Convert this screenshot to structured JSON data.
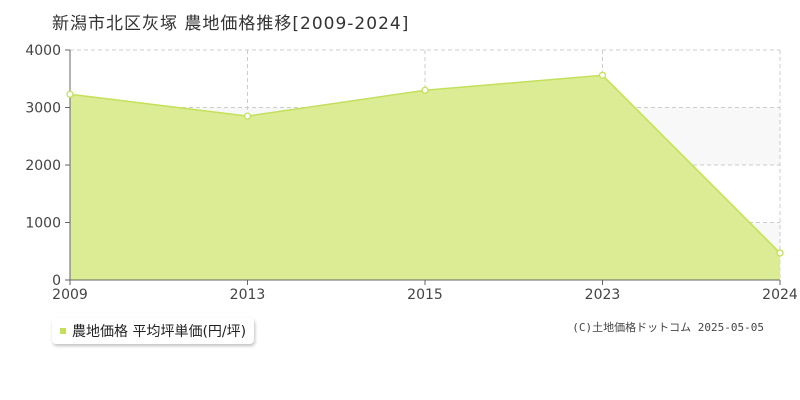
{
  "title": "新潟市北区灰塚 農地価格推移[2009-2024]",
  "legend_label": "農地価格 平均坪単価(円/坪)",
  "credit": "(C)土地価格ドットコム 2025-05-05",
  "colors": {
    "fill": "#dcec94",
    "line": "#c3e05a",
    "band": "#f8f8f8",
    "grid": "#cccccc",
    "axis": "#666666"
  },
  "chart_data": {
    "type": "area",
    "categories": [
      "2009",
      "2013",
      "2015",
      "2023",
      "2024"
    ],
    "series": [
      {
        "name": "農地価格 平均坪単価(円/坪)",
        "values": [
          3230,
          2850,
          3300,
          3560,
          470
        ]
      }
    ],
    "y_ticks": [
      "0",
      "1000",
      "2000",
      "3000",
      "4000"
    ],
    "ylim": [
      0,
      4000
    ],
    "grid": true,
    "legend": "bottom-left"
  }
}
